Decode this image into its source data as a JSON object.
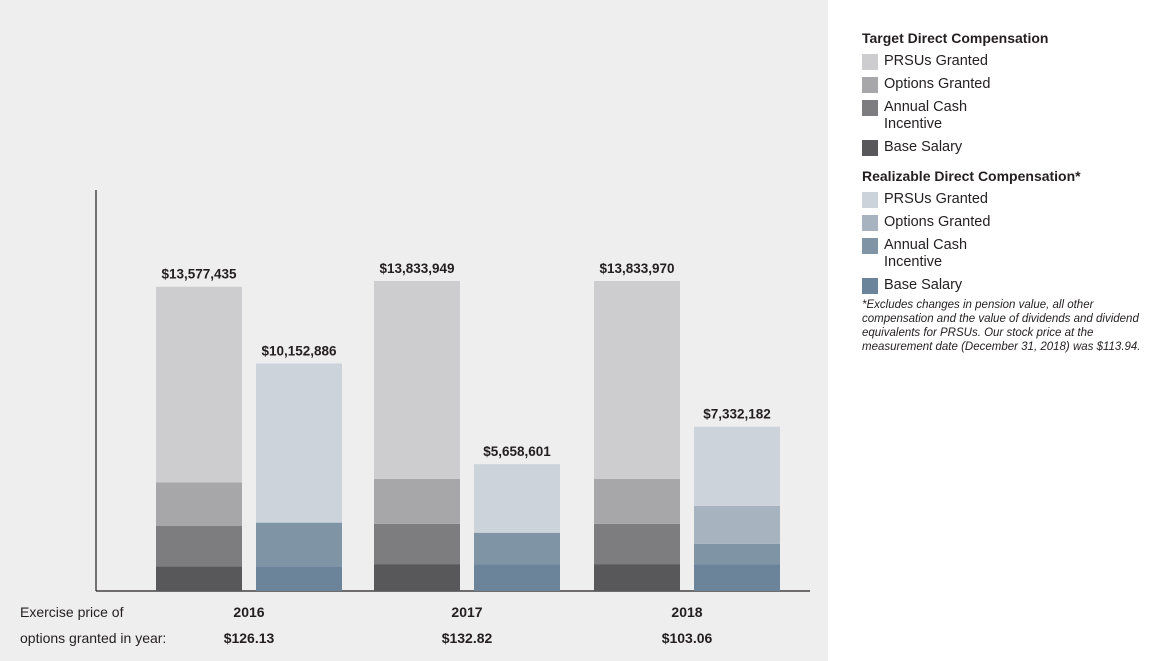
{
  "chart_data": {
    "type": "bar",
    "stacked": true,
    "categories": [
      "2016",
      "2017",
      "2018"
    ],
    "exercise_price_label_line1": "Exercise price of",
    "exercise_price_label_line2": "options granted in year:",
    "exercise_prices": [
      "$126.13",
      "$132.82",
      "$103.06"
    ],
    "ylim": [
      0,
      15000000
    ],
    "groups": [
      {
        "name": "Target Direct Compensation",
        "colors": {
          "PRSUs Granted": "#cdcdcf",
          "Options Granted": "#a7a7a9",
          "Annual Cash Incentive": "#7d7d80",
          "Base Salary": "#58585a"
        },
        "totals": [
          "$13,577,435",
          "$13,833,949",
          "$13,833,970"
        ],
        "values": [
          {
            "Base Salary": 1100000,
            "Annual Cash Incentive": 1800000,
            "Options Granted": 1950000,
            "PRSUs Granted": 8727435
          },
          {
            "Base Salary": 1200000,
            "Annual Cash Incentive": 1800000,
            "Options Granted": 2000000,
            "PRSUs Granted": 8833949
          },
          {
            "Base Salary": 1200000,
            "Annual Cash Incentive": 1800000,
            "Options Granted": 2000000,
            "PRSUs Granted": 8833970
          }
        ]
      },
      {
        "name": "Realizable Direct Compensation*",
        "colors": {
          "PRSUs Granted": "#ccd3db",
          "Options Granted": "#a7b3be",
          "Annual Cash Incentive": "#7f94a4",
          "Base Salary": "#6b849a"
        },
        "totals": [
          "$10,152,886",
          "$5,658,601",
          "$7,332,182"
        ],
        "values": [
          {
            "Base Salary": 1100000,
            "Annual Cash Incentive": 1950000,
            "Options Granted": 0,
            "PRSUs Granted": 7102886
          },
          {
            "Base Salary": 1200000,
            "Annual Cash Incentive": 1400000,
            "Options Granted": 0,
            "PRSUs Granted": 3058601
          },
          {
            "Base Salary": 1200000,
            "Annual Cash Incentive": 900000,
            "Options Granted": 1700000,
            "PRSUs Granted": 3532182
          }
        ]
      }
    ],
    "stack_order": [
      "Base Salary",
      "Annual Cash Incentive",
      "Options Granted",
      "PRSUs Granted"
    ]
  },
  "legend": {
    "target": {
      "title": "Target Direct Compensation",
      "items": [
        {
          "label": "PRSUs Granted",
          "color": "#cdcdcf"
        },
        {
          "label": "Options Granted",
          "color": "#a7a7a9"
        },
        {
          "label": "Annual Cash Incentive",
          "color": "#7d7d80"
        },
        {
          "label": "Base Salary",
          "color": "#58585a"
        }
      ]
    },
    "realizable": {
      "title": "Realizable Direct Compensation*",
      "items": [
        {
          "label": "PRSUs Granted",
          "color": "#ccd3db"
        },
        {
          "label": "Options Granted",
          "color": "#a7b3be"
        },
        {
          "label": "Annual Cash Incentive",
          "color": "#7f94a4"
        },
        {
          "label": "Base Salary",
          "color": "#6b849a"
        }
      ]
    },
    "footnote": "*Excludes changes in pension value, all other compensation and the value of dividends and dividend equivalents for PRSUs. Our stock price at the measurement date (December 31, 2018) was $113.94."
  }
}
